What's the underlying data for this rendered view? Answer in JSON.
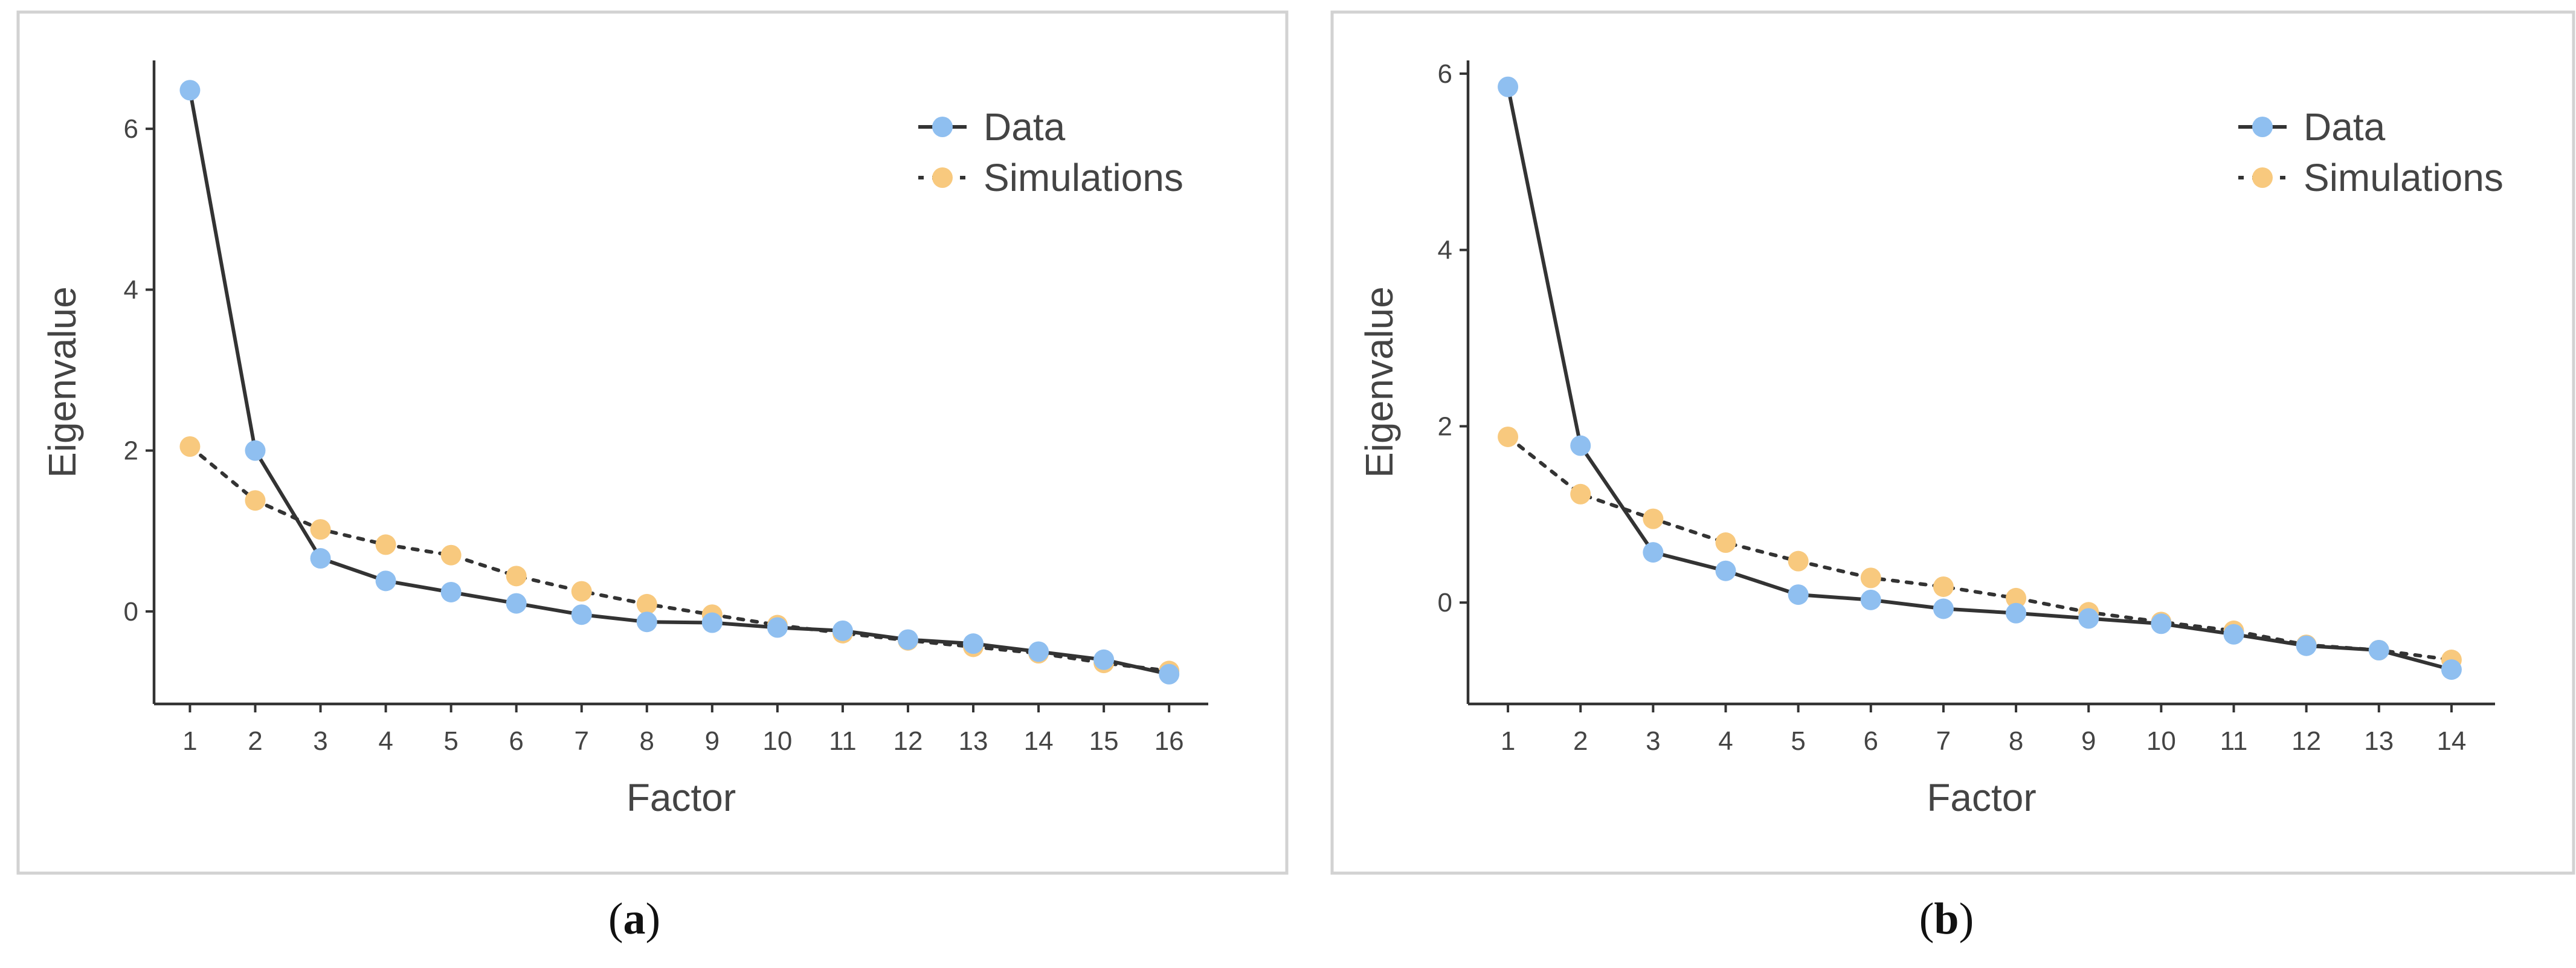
{
  "chart_data": [
    {
      "type": "line",
      "panel_label": "a",
      "xlabel": "Factor",
      "ylabel": "Eigenvalue",
      "x": [
        1,
        2,
        3,
        4,
        5,
        6,
        7,
        8,
        9,
        10,
        11,
        12,
        13,
        14,
        15,
        16
      ],
      "xticks": [
        "1",
        "2",
        "3",
        "4",
        "5",
        "6",
        "7",
        "8",
        "9",
        "10",
        "11",
        "12",
        "13",
        "14",
        "15",
        "16"
      ],
      "yticks": [
        0,
        2,
        4,
        6
      ],
      "xlim": [
        0.45,
        16.6
      ],
      "ylim": [
        -1.15,
        6.85
      ],
      "legend": [
        "Data",
        "Simulations"
      ],
      "legend_position": "top-right",
      "series": [
        {
          "name": "Simulations",
          "color": "#f8c97e",
          "line_style": "dotted",
          "values": [
            2.05,
            1.38,
            1.02,
            0.83,
            0.7,
            0.44,
            0.25,
            0.09,
            -0.04,
            -0.17,
            -0.27,
            -0.36,
            -0.44,
            -0.52,
            -0.64,
            -0.74
          ]
        },
        {
          "name": "Data",
          "color": "#8fbff0",
          "line_style": "solid",
          "values": [
            6.48,
            2.0,
            0.66,
            0.38,
            0.24,
            0.1,
            -0.04,
            -0.13,
            -0.14,
            -0.2,
            -0.24,
            -0.35,
            -0.4,
            -0.5,
            -0.6,
            -0.78
          ]
        }
      ]
    },
    {
      "type": "line",
      "panel_label": "b",
      "xlabel": "Factor",
      "ylabel": "Eigenvalue",
      "x": [
        1,
        2,
        3,
        4,
        5,
        6,
        7,
        8,
        9,
        10,
        11,
        12,
        13,
        14
      ],
      "xticks": [
        "1",
        "2",
        "3",
        "4",
        "5",
        "6",
        "7",
        "8",
        "9",
        "10",
        "11",
        "12",
        "13",
        "14"
      ],
      "yticks": [
        0,
        2,
        4,
        6
      ],
      "xlim": [
        0.45,
        14.6
      ],
      "ylim": [
        -1.15,
        6.15
      ],
      "legend": [
        "Data",
        "Simulations"
      ],
      "legend_position": "top-right",
      "series": [
        {
          "name": "Simulations",
          "color": "#f8c97e",
          "line_style": "dotted",
          "values": [
            1.88,
            1.23,
            0.95,
            0.68,
            0.47,
            0.28,
            0.18,
            0.05,
            -0.11,
            -0.22,
            -0.32,
            -0.48,
            -0.54,
            -0.65
          ]
        },
        {
          "name": "Data",
          "color": "#8fbff0",
          "line_style": "solid",
          "values": [
            5.85,
            1.78,
            0.57,
            0.36,
            0.09,
            0.03,
            -0.07,
            -0.12,
            -0.18,
            -0.24,
            -0.36,
            -0.49,
            -0.54,
            -0.76
          ]
        }
      ]
    }
  ]
}
